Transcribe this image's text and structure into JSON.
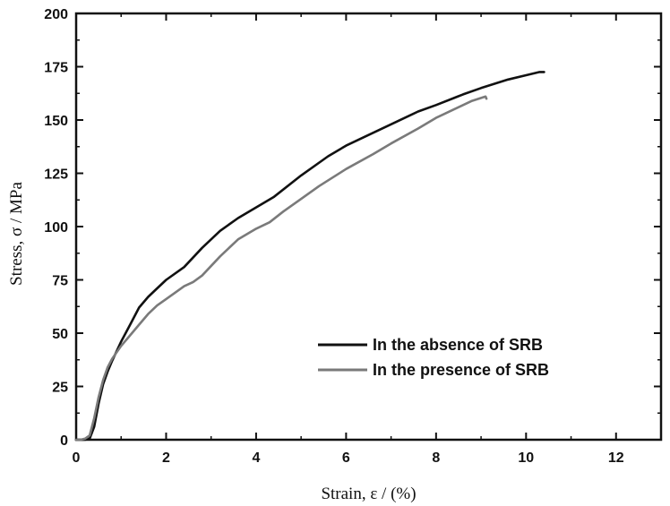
{
  "chart_data": {
    "type": "line",
    "title": "",
    "xlabel": "Strain, ε / (%)",
    "ylabel": "Stress, σ / MPa",
    "xlim": [
      0,
      13
    ],
    "ylim": [
      0,
      200
    ],
    "xticks": [
      0,
      2,
      4,
      6,
      8,
      10,
      12
    ],
    "xtick_labels": [
      "0",
      "2",
      "4",
      "6",
      "8",
      "10",
      "12"
    ],
    "yticks": [
      0,
      25,
      50,
      75,
      100,
      125,
      150,
      175,
      200
    ],
    "ytick_labels": [
      "0",
      "25",
      "50",
      "75",
      "100",
      "125",
      "150",
      "175",
      "200"
    ],
    "grid": false,
    "legend_position": "lower-right",
    "series": [
      {
        "name": "In the absence of SRB",
        "color": "#111111",
        "x": [
          0,
          0.2,
          0.3,
          0.4,
          0.5,
          0.6,
          0.7,
          0.8,
          1.0,
          1.2,
          1.4,
          1.6,
          1.8,
          2.0,
          2.4,
          2.8,
          3.2,
          3.6,
          4.0,
          4.4,
          5.0,
          5.6,
          6.0,
          6.6,
          7.0,
          7.6,
          8.0,
          8.6,
          9.0,
          9.6,
          10.0,
          10.3,
          10.4
        ],
        "y": [
          0,
          0,
          0.5,
          6,
          17,
          26,
          32,
          37,
          46,
          54,
          62,
          67,
          71,
          75,
          81,
          90,
          98,
          104,
          109,
          114,
          124,
          133,
          138,
          144,
          148,
          154,
          157,
          162,
          165,
          169,
          171,
          172.5,
          172.5
        ]
      },
      {
        "name": "In the presence of SRB",
        "color": "#7a7a7a",
        "x": [
          0,
          0.1,
          0.2,
          0.3,
          0.4,
          0.5,
          0.6,
          0.7,
          0.8,
          1.0,
          1.2,
          1.4,
          1.6,
          1.8,
          2.0,
          2.2,
          2.4,
          2.6,
          2.8,
          3.2,
          3.6,
          4.0,
          4.3,
          4.6,
          5.0,
          5.4,
          6.0,
          6.6,
          7.0,
          7.6,
          8.0,
          8.4,
          8.8,
          9.1,
          9.12
        ],
        "y": [
          0,
          0,
          0.5,
          2,
          10,
          20,
          28,
          34,
          38,
          44,
          49,
          54,
          59,
          63,
          66,
          69,
          72,
          74,
          77,
          86,
          94,
          99,
          102,
          107,
          113,
          119,
          127,
          134,
          139,
          146,
          151,
          155,
          159,
          161,
          160
        ]
      }
    ]
  }
}
